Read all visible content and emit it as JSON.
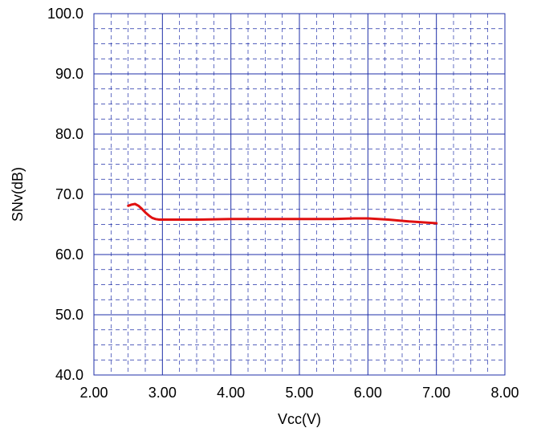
{
  "chart_data": {
    "type": "line",
    "xlabel": "Vcc(V)",
    "ylabel": "SNv(dB)",
    "xlim": [
      2.0,
      8.0
    ],
    "ylim": [
      40.0,
      100.0
    ],
    "x_ticks": [
      "2.00",
      "3.00",
      "4.00",
      "5.00",
      "6.00",
      "7.00",
      "8.00"
    ],
    "y_ticks": [
      "40.0",
      "50.0",
      "60.0",
      "70.0",
      "80.0",
      "90.0",
      "100.0"
    ],
    "grid": true,
    "minor_subdivisions": 4,
    "colors": {
      "grid": "#1f2fa8",
      "frame": "#1f2fa8",
      "series": "#e01010"
    },
    "series": [
      {
        "x": [
          2.5,
          2.55,
          2.6,
          2.65,
          2.7,
          2.75,
          2.8,
          2.85,
          2.9,
          2.95,
          3.0,
          3.2,
          3.5,
          4.0,
          4.5,
          5.0,
          5.5,
          5.8,
          6.0,
          6.3,
          6.6,
          7.0
        ],
        "y": [
          68.1,
          68.3,
          68.4,
          68.1,
          67.6,
          67.0,
          66.5,
          66.1,
          65.9,
          65.8,
          65.8,
          65.8,
          65.8,
          65.9,
          65.9,
          65.9,
          65.9,
          66.0,
          66.0,
          65.8,
          65.5,
          65.2
        ]
      }
    ]
  }
}
